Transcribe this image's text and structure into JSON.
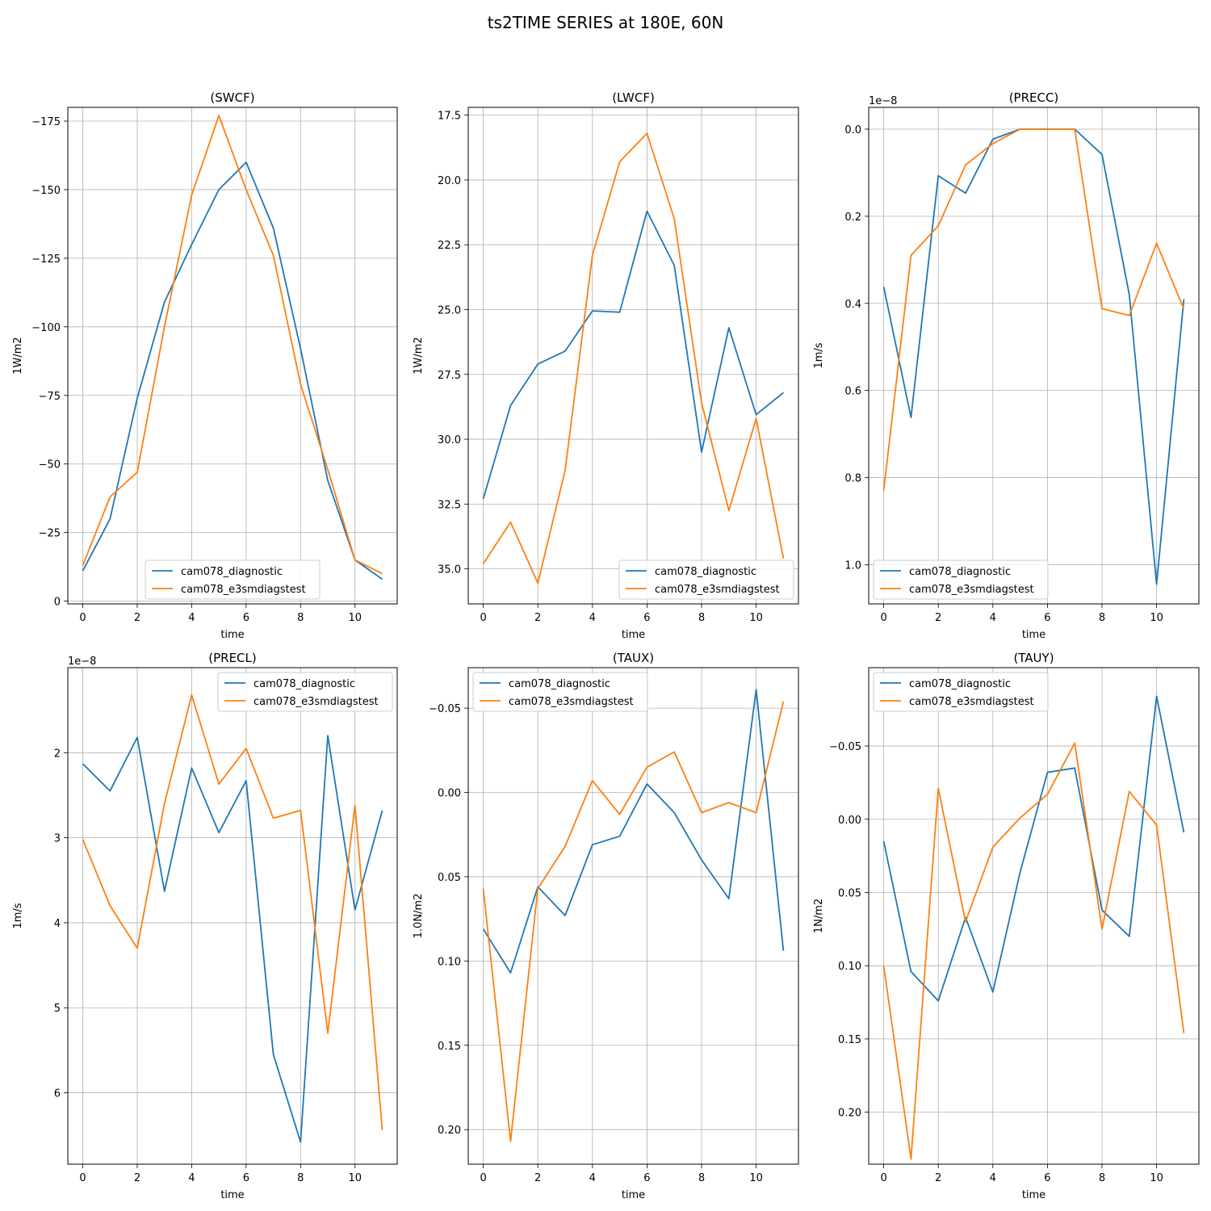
{
  "figure": {
    "suptitle": "ts2TIME SERIES at 180E, 60N"
  },
  "colors": {
    "series_1": "#1f77b4",
    "series_2": "#ff7f0e",
    "grid": "#b0b0b0"
  },
  "chart_data": [
    {
      "type": "line",
      "title": "(SWCF)",
      "xlabel": "time",
      "ylabel": "1W/m2",
      "offset_text": "",
      "y_inverted": true,
      "grid": true,
      "legend_loc": "lower-center",
      "x": [
        0,
        1,
        2,
        3,
        4,
        5,
        6,
        7,
        8,
        9,
        10,
        11
      ],
      "xlim": [
        -0.55,
        11.55
      ],
      "ylim": [
        1,
        -180
      ],
      "xticks": [
        0,
        2,
        4,
        6,
        8,
        10
      ],
      "yticks": [
        0,
        -25,
        -50,
        -75,
        -100,
        -125,
        -150,
        -175
      ],
      "series": [
        {
          "name": "cam078_diagnostic",
          "values": [
            -11,
            -30,
            -74,
            -109,
            -130,
            -150,
            -160,
            -136,
            -92,
            -44,
            -15,
            -8
          ]
        },
        {
          "name": "cam078_e3smdiagstest",
          "values": [
            -13,
            -38,
            -47,
            -100,
            -148,
            -177,
            -150,
            -126,
            -79,
            -48,
            -15,
            -10
          ]
        }
      ]
    },
    {
      "type": "line",
      "title": "(LWCF)",
      "xlabel": "time",
      "ylabel": "1W/m2",
      "offset_text": "",
      "y_inverted": true,
      "grid": true,
      "legend_loc": "lower-right",
      "x": [
        0,
        1,
        2,
        3,
        4,
        5,
        6,
        7,
        8,
        9,
        10,
        11
      ],
      "xlim": [
        -0.55,
        11.55
      ],
      "ylim": [
        36.35,
        17.2
      ],
      "xticks": [
        0,
        2,
        4,
        6,
        8,
        10
      ],
      "yticks": [
        17.5,
        20.0,
        22.5,
        25.0,
        27.5,
        30.0,
        32.5,
        35.0
      ],
      "series": [
        {
          "name": "cam078_diagnostic",
          "values": [
            32.3,
            28.7,
            27.1,
            26.6,
            25.05,
            25.1,
            21.2,
            23.3,
            30.5,
            25.7,
            29.05,
            28.2
          ]
        },
        {
          "name": "cam078_e3smdiagstest",
          "values": [
            34.8,
            33.2,
            35.55,
            31.2,
            22.9,
            19.3,
            18.2,
            21.5,
            28.6,
            32.75,
            29.2,
            34.6
          ]
        }
      ]
    },
    {
      "type": "line",
      "title": "(PRECC)",
      "xlabel": "time",
      "ylabel": "1m/s",
      "offset_text": "1e−8",
      "y_inverted": true,
      "grid": true,
      "legend_loc": "lower-left",
      "x": [
        0,
        1,
        2,
        3,
        4,
        5,
        6,
        7,
        8,
        9,
        10,
        11
      ],
      "xlim": [
        -0.55,
        11.55
      ],
      "ylim": [
        1.09,
        -0.05
      ],
      "xticks": [
        0,
        2,
        4,
        6,
        8,
        10
      ],
      "yticks": [
        0.0,
        0.2,
        0.4,
        0.6,
        0.8,
        1.0
      ],
      "series": [
        {
          "name": "cam078_diagnostic",
          "values": [
            0.362,
            0.662,
            0.107,
            0.147,
            0.023,
            0.0,
            0.0,
            0.0,
            0.058,
            0.38,
            1.045,
            0.39
          ]
        },
        {
          "name": "cam078_e3smdiagstest",
          "values": [
            0.83,
            0.29,
            0.222,
            0.082,
            0.033,
            0.0,
            0.0,
            0.0,
            0.412,
            0.428,
            0.262,
            0.413
          ]
        }
      ]
    },
    {
      "type": "line",
      "title": "(PRECL)",
      "xlabel": "time",
      "ylabel": "1m/s",
      "offset_text": "1e−8",
      "y_inverted": true,
      "grid": true,
      "legend_loc": "upper-right",
      "x": [
        0,
        1,
        2,
        3,
        4,
        5,
        6,
        7,
        8,
        9,
        10,
        11
      ],
      "xlim": [
        -0.55,
        11.55
      ],
      "ylim": [
        6.84,
        1.0
      ],
      "xticks": [
        0,
        2,
        4,
        6,
        8,
        10
      ],
      "yticks": [
        2,
        3,
        4,
        5,
        6
      ],
      "series": [
        {
          "name": "cam078_diagnostic",
          "values": [
            2.13,
            2.45,
            1.82,
            3.63,
            2.18,
            2.94,
            2.33,
            5.55,
            6.58,
            1.8,
            3.85,
            2.68
          ]
        },
        {
          "name": "cam078_e3smdiagstest",
          "values": [
            3.02,
            3.8,
            4.3,
            2.6,
            1.32,
            2.37,
            1.95,
            2.77,
            2.68,
            5.3,
            2.62,
            6.44
          ]
        }
      ]
    },
    {
      "type": "line",
      "title": "(TAUX)",
      "xlabel": "time",
      "ylabel": "1.0N/m2",
      "offset_text": "",
      "y_inverted": true,
      "grid": true,
      "legend_loc": "upper-left",
      "x": [
        0,
        1,
        2,
        3,
        4,
        5,
        6,
        7,
        8,
        9,
        10,
        11
      ],
      "xlim": [
        -0.55,
        11.55
      ],
      "ylim": [
        0.2205,
        -0.074
      ],
      "xticks": [
        0,
        2,
        4,
        6,
        8,
        10
      ],
      "yticks": [
        -0.05,
        0.0,
        0.05,
        0.1,
        0.15,
        0.2
      ],
      "series": [
        {
          "name": "cam078_diagnostic",
          "values": [
            0.081,
            0.107,
            0.056,
            0.073,
            0.031,
            0.026,
            -0.005,
            0.012,
            0.04,
            0.063,
            -0.061,
            0.094
          ]
        },
        {
          "name": "cam078_e3smdiagstest",
          "values": [
            0.057,
            0.207,
            0.057,
            0.032,
            -0.007,
            0.013,
            -0.015,
            -0.024,
            0.012,
            0.006,
            0.012,
            -0.054
          ]
        }
      ]
    },
    {
      "type": "line",
      "title": "(TAUY)",
      "xlabel": "time",
      "ylabel": "1N/m2",
      "offset_text": "",
      "y_inverted": true,
      "grid": true,
      "legend_loc": "upper-left",
      "x": [
        0,
        1,
        2,
        3,
        4,
        5,
        6,
        7,
        8,
        9,
        10,
        11
      ],
      "xlim": [
        -0.55,
        11.55
      ],
      "ylim": [
        0.2355,
        -0.1035
      ],
      "xticks": [
        0,
        2,
        4,
        6,
        8,
        10
      ],
      "yticks": [
        -0.05,
        0.0,
        0.05,
        0.1,
        0.15,
        0.2
      ],
      "series": [
        {
          "name": "cam078_diagnostic",
          "values": [
            0.015,
            0.104,
            0.124,
            0.067,
            0.118,
            0.036,
            -0.032,
            -0.035,
            0.062,
            0.08,
            -0.084,
            0.009
          ]
        },
        {
          "name": "cam078_e3smdiagstest",
          "values": [
            0.1,
            0.232,
            -0.021,
            0.07,
            0.019,
            -0.001,
            -0.017,
            -0.052,
            0.075,
            -0.019,
            0.004,
            0.146
          ]
        }
      ]
    }
  ]
}
